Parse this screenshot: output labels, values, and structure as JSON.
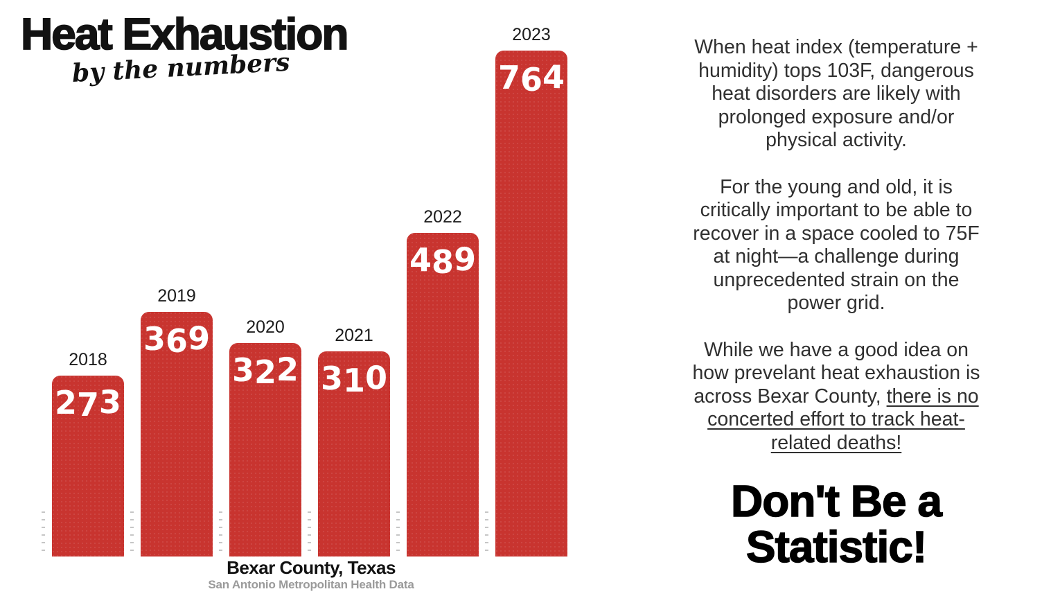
{
  "title": "Heat Exhaustion",
  "subtitle": "by the numbers",
  "chart_data": {
    "type": "bar",
    "categories": [
      "2018",
      "2019",
      "2020",
      "2021",
      "2022",
      "2023"
    ],
    "values": [
      273,
      369,
      322,
      310,
      489,
      764
    ],
    "title": "Heat Exhaustion by the numbers",
    "xlabel": "",
    "ylabel": "",
    "bar_color": "#c8342f",
    "value_label_color": "#ffffff",
    "grid": false,
    "legend": false
  },
  "caption": {
    "location": "Bexar County, Texas",
    "source": "San Antonio Metropolitan Health Data"
  },
  "panel": {
    "paragraph1": "When heat index (temperature + humidity) tops 103F, dangerous heat disorders are likely with prolonged exposure and/or physical activity.",
    "paragraph2": "For the young and old, it is critically important to be able to recover in a space cooled to 75F at night—a challenge during unprecedented strain on the power grid.",
    "paragraph3_plain": "While we have a good idea on how prevelant heat exhaustion is across Bexar County, ",
    "paragraph3_underlined": "there is no concerted effort to track heat-related deaths!",
    "cta_line1": "Don't Be a",
    "cta_line2": "Statistic!"
  }
}
